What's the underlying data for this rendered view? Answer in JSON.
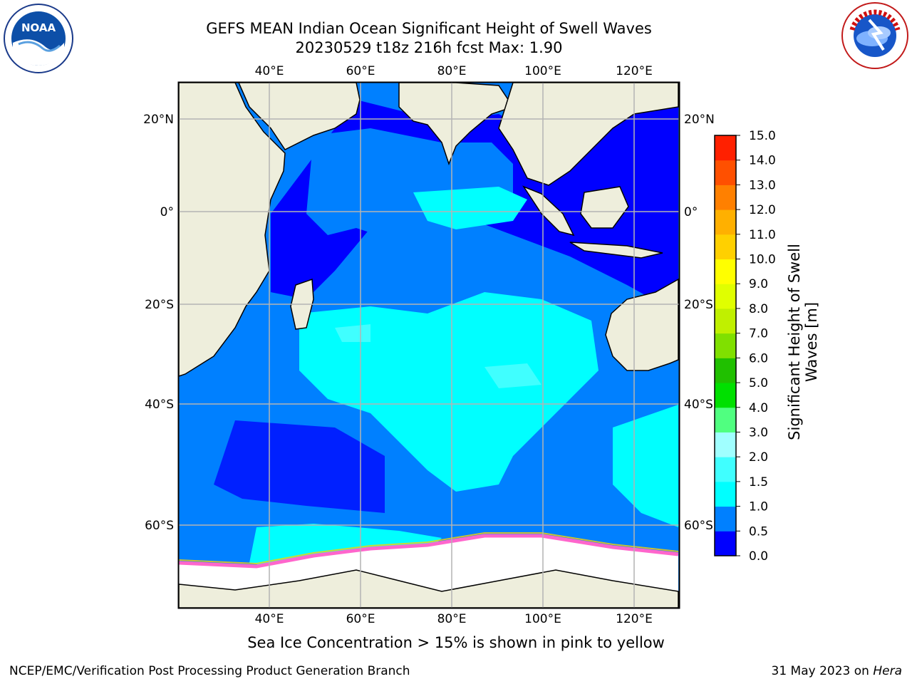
{
  "header": {
    "title_line1": "GEFS MEAN Indian Ocean Significant Height of Swell Waves",
    "title_line2": "20230529 t18z 216h fcst   Max: 1.90"
  },
  "logos": {
    "left": {
      "icon": "noaa-logo",
      "text": "NOAA"
    },
    "right": {
      "icon": "nws-logo",
      "text": "NATIONAL WEATHER SERVICE"
    }
  },
  "map": {
    "region": "Indian Ocean",
    "lon_ticks": [
      "40°E",
      "60°E",
      "80°E",
      "100°E",
      "120°E"
    ],
    "lat_ticks_left": [
      "20°N",
      "0°",
      "20°S",
      "40°S",
      "60°S"
    ],
    "lat_ticks_right": [
      "20°N",
      "0°",
      "20°S",
      "40°S",
      "60°S"
    ],
    "colors": {
      "land": "#eeeedc",
      "sea_ice": "#ffffff",
      "ice_edge": "#ff66cc",
      "grid": "#b4b4b4"
    }
  },
  "colorbar": {
    "label": "Significant Height of Swell Waves [m]",
    "ticks": [
      "0.0",
      "0.5",
      "1.0",
      "1.5",
      "2.0",
      "3.0",
      "4.0",
      "5.0",
      "6.0",
      "7.0",
      "8.0",
      "9.0",
      "10.0",
      "11.0",
      "12.0",
      "13.0",
      "14.0",
      "15.0"
    ],
    "colors": [
      "#0000ff",
      "#0080ff",
      "#00ffff",
      "#40ffff",
      "#a0ffff",
      "#50ff80",
      "#00e000",
      "#20c000",
      "#80e000",
      "#c0f000",
      "#e0ff00",
      "#ffff00",
      "#ffd000",
      "#ffb000",
      "#ff8000",
      "#ff5000",
      "#ff2000"
    ]
  },
  "caption": "Sea Ice Concentration > 15% is shown in pink to yellow",
  "footer": {
    "left": "NCEP/EMC/Verification Post Processing Product Generation Branch",
    "right_prefix": "31 May 2023 on ",
    "right_host": "Hera"
  }
}
